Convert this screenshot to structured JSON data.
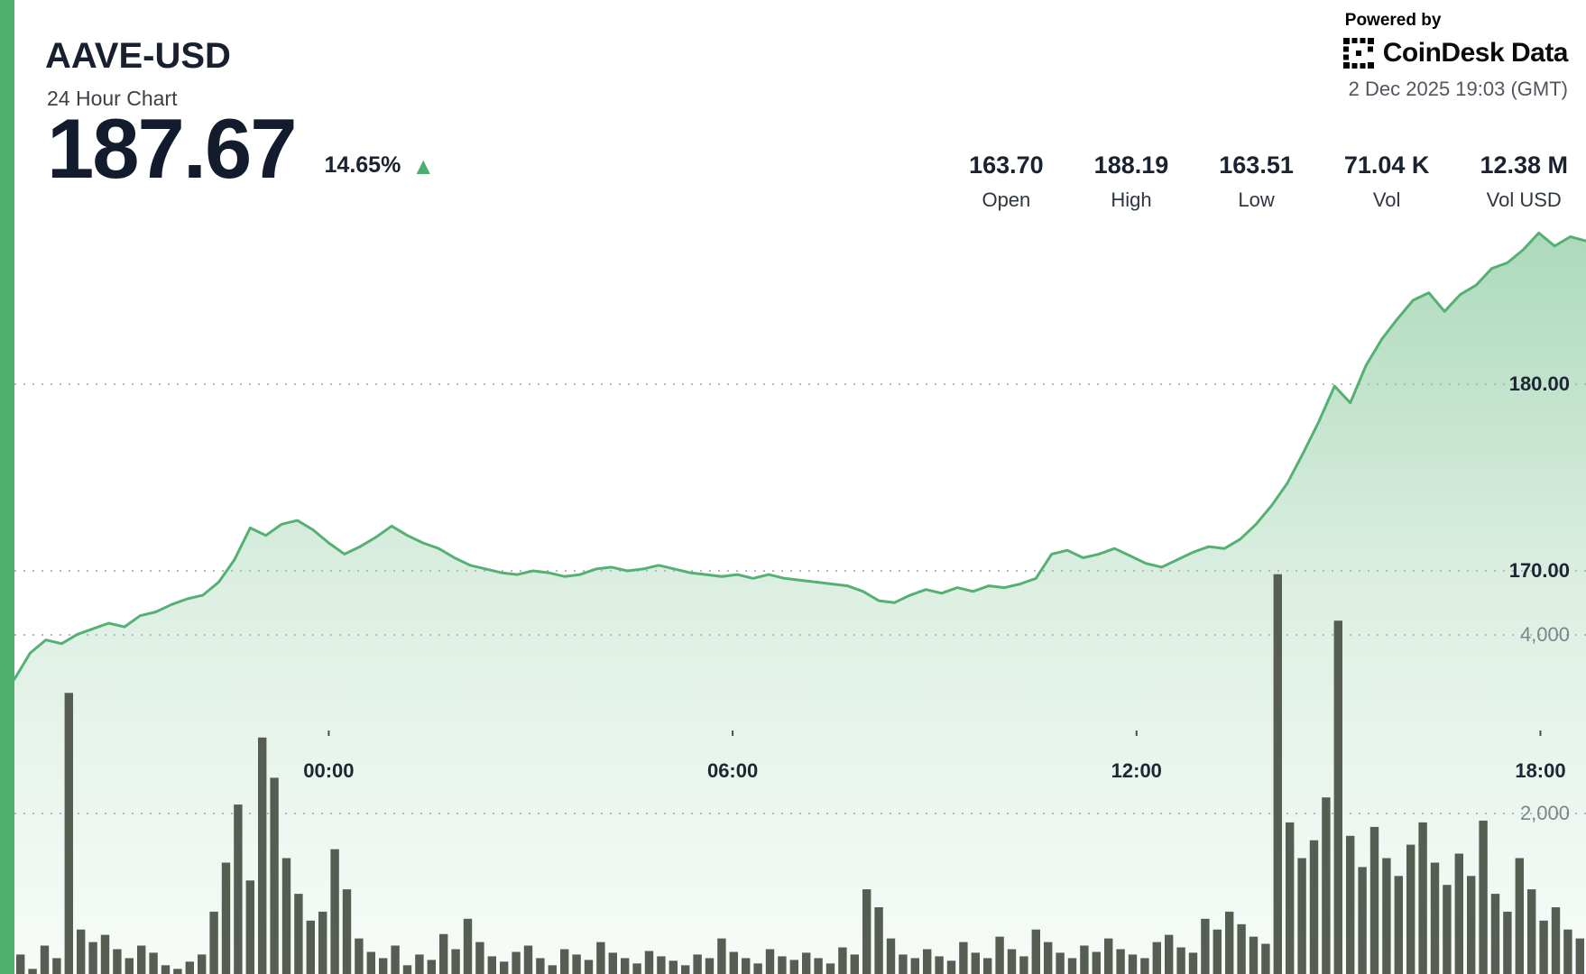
{
  "header": {
    "symbol": "AAVE-USD",
    "subtitle": "24 Hour Chart",
    "price": "187.67",
    "change_pct": "14.65%",
    "up_arrow": "▲",
    "powered_by": "Powered by",
    "provider": "CoinDesk Data",
    "timestamp": "2 Dec 2025 19:03 (GMT)"
  },
  "stats": [
    {
      "value": "163.70",
      "label": "Open"
    },
    {
      "value": "188.19",
      "label": "High"
    },
    {
      "value": "163.51",
      "label": "Low"
    },
    {
      "value": "71.04 K",
      "label": "Vol"
    },
    {
      "value": "12.38 M",
      "label": "Vol USD"
    }
  ],
  "colors": {
    "green_line": "#55b173",
    "accent_bar": "#4fb06e",
    "up_triangle": "#4caf6e",
    "volume_bar": "#565e53",
    "grid": "#b2b8bf",
    "text_dark": "#1a2230",
    "text_gray": "#7d858c"
  },
  "chart_data": {
    "type": "area",
    "title": "AAVE-USD 24 Hour Chart",
    "legend": [],
    "grid": "dotted-horizontal",
    "open": 163.7,
    "high": 188.19,
    "low": 163.51,
    "close": 187.67,
    "volume": "71.04 K",
    "volume_usd": "12.38 M",
    "price_ylim": [
      162,
      190
    ],
    "volume_ylim": [
      0,
      5000
    ],
    "price_ticks": [
      {
        "label": "180.00",
        "value": 180
      },
      {
        "label": "170.00",
        "value": 170
      }
    ],
    "volume_ticks": [
      {
        "label": "4,000",
        "value": 4000
      },
      {
        "label": "2,000",
        "value": 2000
      }
    ],
    "x_ticks": [
      {
        "label": "00:00",
        "f": 0.2
      },
      {
        "label": "06:00",
        "f": 0.457
      },
      {
        "label": "12:00",
        "f": 0.714
      },
      {
        "label": "18:00",
        "f": 0.971
      }
    ],
    "prices": [
      164.2,
      165.6,
      166.3,
      166.1,
      166.6,
      166.9,
      167.2,
      167.0,
      167.6,
      167.8,
      168.2,
      168.5,
      168.7,
      169.4,
      170.6,
      172.3,
      171.9,
      172.5,
      172.7,
      172.2,
      171.5,
      170.9,
      171.3,
      171.8,
      172.4,
      171.9,
      171.5,
      171.2,
      170.7,
      170.3,
      170.1,
      169.9,
      169.8,
      170.0,
      169.9,
      169.7,
      169.8,
      170.1,
      170.2,
      170.0,
      170.1,
      170.3,
      170.1,
      169.9,
      169.8,
      169.7,
      169.8,
      169.6,
      169.8,
      169.6,
      169.5,
      169.4,
      169.3,
      169.2,
      168.9,
      168.4,
      168.3,
      168.7,
      169.0,
      168.8,
      169.1,
      168.9,
      169.2,
      169.1,
      169.3,
      169.6,
      170.9,
      171.1,
      170.7,
      170.9,
      171.2,
      170.8,
      170.4,
      170.2,
      170.6,
      171.0,
      171.3,
      171.2,
      171.7,
      172.5,
      173.5,
      174.7,
      176.3,
      178.0,
      179.9,
      179.0,
      181.0,
      182.4,
      183.5,
      184.5,
      184.9,
      183.9,
      184.8,
      185.3,
      186.2,
      186.5,
      187.2,
      188.1,
      187.4,
      187.9,
      187.67
    ],
    "volumes": [
      420,
      260,
      520,
      380,
      3350,
      700,
      560,
      640,
      480,
      380,
      520,
      440,
      300,
      260,
      340,
      420,
      900,
      1450,
      2100,
      1250,
      2850,
      2400,
      1500,
      1100,
      800,
      900,
      1600,
      1150,
      600,
      450,
      380,
      520,
      300,
      420,
      360,
      650,
      480,
      820,
      560,
      400,
      340,
      450,
      520,
      380,
      300,
      480,
      420,
      360,
      560,
      440,
      380,
      320,
      460,
      400,
      350,
      300,
      420,
      380,
      600,
      450,
      380,
      320,
      480,
      400,
      360,
      440,
      380,
      320,
      500,
      420,
      1150,
      950,
      600,
      420,
      380,
      480,
      400,
      350,
      560,
      440,
      380,
      620,
      480,
      400,
      700,
      560,
      440,
      380,
      520,
      450,
      600,
      480,
      420,
      380,
      560,
      640,
      500,
      440,
      820,
      700,
      900,
      760,
      620,
      540,
      4680,
      1900,
      1500,
      1700,
      2180,
      4160,
      1750,
      1400,
      1850,
      1500,
      1300,
      1650,
      1900,
      1450,
      1200,
      1550,
      1300,
      1920,
      1100,
      900,
      1500,
      1150,
      800,
      950,
      700,
      600
    ]
  }
}
